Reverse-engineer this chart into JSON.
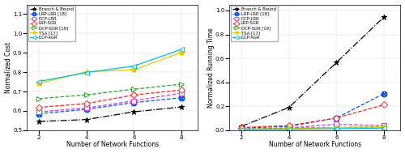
{
  "x": [
    2,
    4,
    6,
    8
  ],
  "left": {
    "ylabel": "Normalized Cost",
    "ylim": [
      0.5,
      1.15
    ],
    "yticks": [
      0.5,
      0.6,
      0.7,
      0.8,
      0.9,
      1.0,
      1.1
    ],
    "series": {
      "Branch & Bound": {
        "y": [
          0.545,
          0.555,
          0.595,
          0.62
        ],
        "color": "#000000",
        "linestyle": "-.",
        "marker": "*",
        "markersize": 5,
        "mfc": "#000000"
      },
      "LRP-LRR [18]": {
        "y": [
          0.585,
          0.608,
          0.643,
          0.668
        ],
        "color": "#0055FF",
        "linestyle": "--",
        "marker": "$\\bigotimes$",
        "markersize": 5,
        "mfc": "white"
      },
      "DCP-LRR": {
        "y": [
          0.595,
          0.615,
          0.652,
          0.692
        ],
        "color": "#CC44CC",
        "linestyle": "--",
        "marker": "s",
        "markersize": 4,
        "mfc": "white"
      },
      "LRP-SGR": {
        "y": [
          0.618,
          0.638,
          0.682,
          0.708
        ],
        "color": "#FF2222",
        "linestyle": "--",
        "marker": "D",
        "markersize": 4,
        "mfc": "white"
      },
      "DCP-SGR [19]": {
        "y": [
          0.663,
          0.683,
          0.712,
          0.738
        ],
        "color": "#22AA22",
        "linestyle": "--",
        "marker": ">",
        "markersize": 4,
        "mfc": "white"
      },
      "TSA [17]": {
        "y": [
          0.742,
          0.802,
          0.812,
          0.902
        ],
        "color": "#DDCC00",
        "linestyle": "-",
        "marker": "*",
        "markersize": 6,
        "mfc": "#DDCC00"
      },
      "DCP-AGR": {
        "y": [
          0.752,
          0.798,
          0.832,
          0.918
        ],
        "color": "#00BBDD",
        "linestyle": "-",
        "marker": "<",
        "markersize": 4,
        "mfc": "white"
      }
    }
  },
  "right": {
    "ylabel": "Normalized Running Time",
    "ylim": [
      0,
      1.05
    ],
    "yticks": [
      0.0,
      0.2,
      0.4,
      0.6,
      0.8,
      1.0
    ],
    "series": {
      "Branch & Bound": {
        "y": [
          0.032,
          0.19,
          0.565,
          0.945
        ],
        "color": "#000000",
        "linestyle": "-.",
        "marker": "*",
        "markersize": 5,
        "mfc": "#000000"
      },
      "LRP-LRR [18]": {
        "y": [
          0.018,
          0.032,
          0.102,
          0.305
        ],
        "color": "#0055FF",
        "linestyle": "--",
        "marker": "$\\bigotimes$",
        "markersize": 5,
        "mfc": "white"
      },
      "DCP-LRR": {
        "y": [
          0.008,
          0.018,
          0.05,
          0.038
        ],
        "color": "#CC44CC",
        "linestyle": "--",
        "marker": "s",
        "markersize": 4,
        "mfc": "white"
      },
      "LRP-SGR": {
        "y": [
          0.022,
          0.038,
          0.102,
          0.212
        ],
        "color": "#FF2222",
        "linestyle": "--",
        "marker": "D",
        "markersize": 4,
        "mfc": "white"
      },
      "DCP-SGR [19]": {
        "y": [
          0.008,
          0.018,
          0.022,
          0.028
        ],
        "color": "#22AA22",
        "linestyle": "--",
        "marker": ">",
        "markersize": 4,
        "mfc": "white"
      },
      "TSA [17]": {
        "y": [
          0.008,
          0.012,
          0.022,
          0.028
        ],
        "color": "#DDCC00",
        "linestyle": "-",
        "marker": "*",
        "markersize": 6,
        "mfc": "#DDCC00"
      },
      "DCP-AGR": {
        "y": [
          0.006,
          0.008,
          0.012,
          0.018
        ],
        "color": "#00BBDD",
        "linestyle": "-",
        "marker": "<",
        "markersize": 4,
        "mfc": "white"
      }
    }
  },
  "xlabel": "Number of Network Functions",
  "legend_labels": [
    "Branch & Bound",
    "LRP-LRR [18]",
    "DCP-LRR",
    "LRP-SGR",
    "DCP-SGR [19]",
    "TSA [17]",
    "DCP-AGR"
  ]
}
